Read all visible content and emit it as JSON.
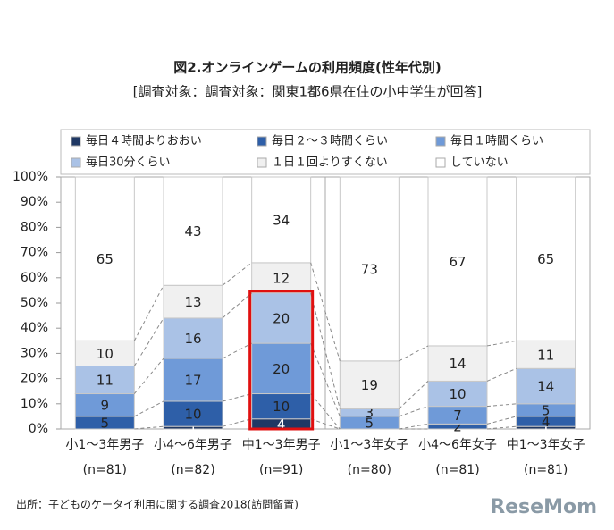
{
  "chart_data": {
    "type": "stacked_bar",
    "title": "図2.オンラインゲームの利用頻度(性年代別)",
    "subtitle": "[調査対象：調査対象：関東1都6県在住の小中学生が回答]",
    "categories": [
      "小1～3年男子",
      "小4～6年男子",
      "中1～3年男子",
      "小1～3年女子",
      "小4～6年女子",
      "中1～3年女子"
    ],
    "sample_sizes": [
      "(n=81)",
      "(n=82)",
      "(n=91)",
      "(n=80)",
      "(n=81)",
      "(n=81)"
    ],
    "series": [
      {
        "name": "毎日４時間よりおおい",
        "color": "#1f3864",
        "values": [
          0,
          1,
          4,
          0,
          0,
          1
        ]
      },
      {
        "name": "毎日２～３時間くらい",
        "color": "#2e5fa8",
        "values": [
          5,
          10,
          10,
          0,
          2,
          4
        ]
      },
      {
        "name": "毎日１時間くらい",
        "color": "#6f9ad8",
        "values": [
          9,
          17,
          20,
          5,
          7,
          5
        ]
      },
      {
        "name": "毎日30分くらい",
        "color": "#aac2e6",
        "values": [
          11,
          16,
          20,
          3,
          10,
          14
        ]
      },
      {
        "name": "１日１回よりすくない",
        "color": "#f0f0f0",
        "values": [
          10,
          13,
          12,
          19,
          14,
          11
        ]
      },
      {
        "name": "していない",
        "color": "#ffffff",
        "values": [
          65,
          43,
          34,
          73,
          67,
          65
        ]
      }
    ],
    "ylim": [
      0,
      100
    ],
    "yticks": [
      {
        "value": 0,
        "label": "0%"
      },
      {
        "value": 10,
        "label": "10%"
      },
      {
        "value": 20,
        "label": "20%"
      },
      {
        "value": 30,
        "label": "30%"
      },
      {
        "value": 40,
        "label": "40%"
      },
      {
        "value": 50,
        "label": "50%"
      },
      {
        "value": 60,
        "label": "60%"
      },
      {
        "value": 70,
        "label": "70%"
      },
      {
        "value": 80,
        "label": "80%"
      },
      {
        "value": 90,
        "label": "90%"
      },
      {
        "value": 100,
        "label": "100%"
      }
    ],
    "highlight_category": 2,
    "highlight_series_count": 4,
    "source": "出所：子どものケータイ利用に関する調査2018(訪問留置)",
    "logo": "ReseMom"
  }
}
